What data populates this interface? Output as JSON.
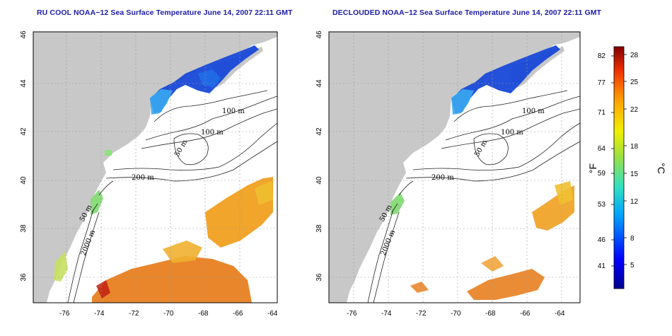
{
  "panels": [
    {
      "title": "RU COOL NOAA−12 Sea Surface Temperature June 14, 2007 22:11 GMT"
    },
    {
      "title": "DECLOUDED NOAA−12 Sea Surface Temperature June 14, 2007 22:11 GMT"
    }
  ],
  "axes": {
    "lon_ticks": [
      "-76",
      "-74",
      "-72",
      "-70",
      "-68",
      "-66",
      "-64"
    ],
    "lat_ticks": [
      "46",
      "44",
      "42",
      "40",
      "38",
      "36"
    ]
  },
  "contours": {
    "m100a": "100 m",
    "m100b": "100 m",
    "m50a": "50 m",
    "m200": "200 m",
    "m50b": "50 m",
    "m2000": "2000 m"
  },
  "colorbar": {
    "fahrenheit": [
      "82",
      "77",
      "71",
      "64",
      "59",
      "53",
      "46",
      "41"
    ],
    "celsius": [
      "28",
      "25",
      "22",
      "18",
      "15",
      "12",
      "8",
      "5"
    ],
    "unit_f": "°F",
    "unit_c": "°C"
  },
  "colors": {
    "land": "#c8c8c8",
    "ocean": "#ffffff",
    "title": "#1a1aa8",
    "cold": "#1040d0",
    "warm": "#e87818",
    "hot": "#c01010"
  }
}
